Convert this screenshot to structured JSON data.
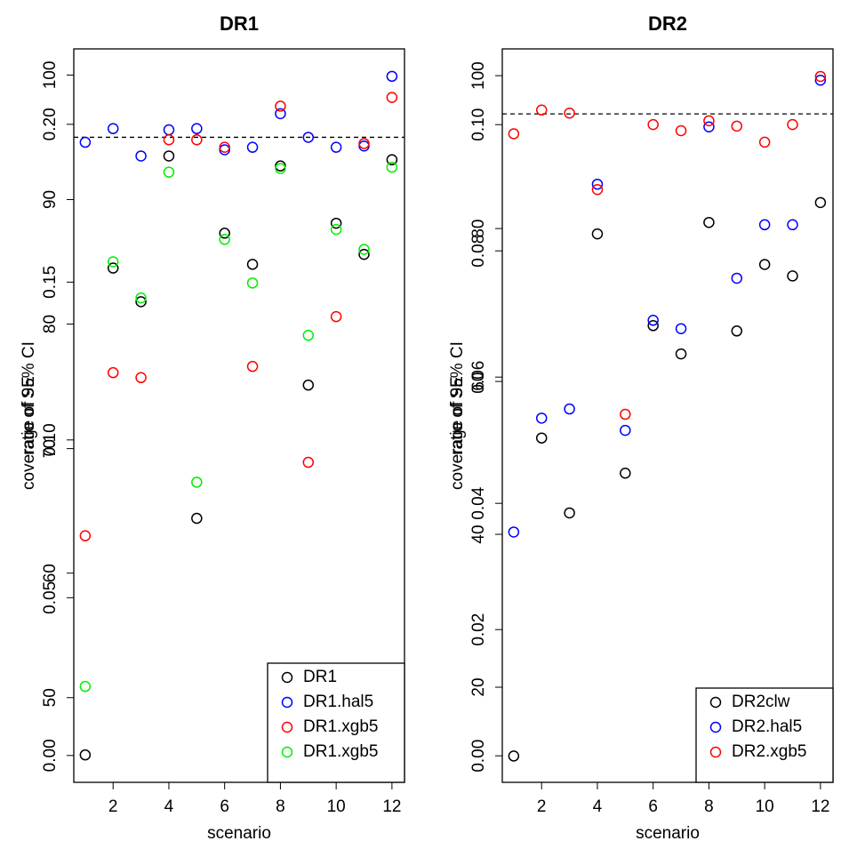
{
  "chart_data": [
    {
      "type": "scatter",
      "title": "DR1",
      "xlabel": "scenario",
      "ylabel": "coverage of 95% CI",
      "y2label": "ratio of SE",
      "x": [
        1,
        2,
        3,
        4,
        5,
        6,
        7,
        8,
        9,
        10,
        11,
        12
      ],
      "xlim": [
        0.59,
        12.45
      ],
      "xticks": [
        2,
        4,
        6,
        8,
        10,
        12
      ],
      "ylim": [
        43.2,
        102.1
      ],
      "yticks": [
        50,
        60,
        70,
        80,
        90,
        100
      ],
      "y2lim": [
        -0.0085,
        0.2239
      ],
      "y2ticks": [
        {
          "value": 0,
          "label": "0.00"
        },
        {
          "value": 0.05,
          "label": "0.05"
        },
        {
          "value": 0.1,
          "label": "0.10"
        },
        {
          "value": 0.15,
          "label": "0.15"
        },
        {
          "value": 0.2,
          "label": "0.20"
        }
      ],
      "hline": 95,
      "legend": "bottomright",
      "series": [
        {
          "name": "DR1",
          "color": "#000000",
          "values": [
            45.4,
            84.5,
            81.8,
            93.5,
            64.4,
            87.3,
            84.8,
            92.7,
            75.1,
            88.1,
            85.6,
            93.2
          ]
        },
        {
          "name": "DR1.hal5",
          "color": "#0000ff",
          "values": [
            94.6,
            95.7,
            93.5,
            95.6,
            95.7,
            94.0,
            94.2,
            96.9,
            95.0,
            94.2,
            94.3,
            99.9
          ]
        },
        {
          "name": "DR1.xgb5",
          "color": "#ff0000",
          "values": [
            63.0,
            76.1,
            75.7,
            94.8,
            94.8,
            94.2,
            76.6,
            97.5,
            68.9,
            80.6,
            94.5,
            98.2
          ]
        },
        {
          "name": "DR1.xgb5",
          "color": "#00ee00",
          "values": [
            50.9,
            85.0,
            82.1,
            92.2,
            67.3,
            86.8,
            83.3,
            92.5,
            79.1,
            87.6,
            86.0,
            92.6
          ]
        }
      ]
    },
    {
      "type": "scatter",
      "title": "DR2",
      "xlabel": "scenario",
      "ylabel": "coverage of 95% CI",
      "y2label": "ratio of SE",
      "x": [
        1,
        2,
        3,
        4,
        5,
        6,
        7,
        8,
        9,
        10,
        11,
        12
      ],
      "xlim": [
        0.59,
        12.45
      ],
      "xticks": [
        2,
        4,
        6,
        8,
        10,
        12
      ],
      "ylim": [
        7.56,
        103.5
      ],
      "yticks": [
        20,
        40,
        60,
        80,
        100
      ],
      "y2lim": [
        -0.0042,
        0.112
      ],
      "y2ticks": [
        {
          "value": 0,
          "label": "0.00"
        },
        {
          "value": 0.02,
          "label": "0.02"
        },
        {
          "value": 0.04,
          "label": "0.04"
        },
        {
          "value": 0.06,
          "label": "0.06"
        },
        {
          "value": 0.08,
          "label": "0.08"
        },
        {
          "value": 0.1,
          "label": "0.10"
        }
      ],
      "hline": 95,
      "legend": "bottomright",
      "series": [
        {
          "name": "DR2clw",
          "color": "#000000",
          "values": [
            11.0,
            52.6,
            42.8,
            79.3,
            48.0,
            67.3,
            63.6,
            80.8,
            66.6,
            75.3,
            73.8,
            83.4
          ]
        },
        {
          "name": "DR2.hal5",
          "color": "#0000ff",
          "values": [
            40.3,
            55.2,
            56.4,
            85.8,
            53.6,
            68.0,
            66.9,
            93.3,
            73.5,
            80.5,
            80.5,
            99.4
          ]
        },
        {
          "name": "DR2.xgb5",
          "color": "#ff0000",
          "values": [
            92.4,
            95.5,
            95.1,
            85.1,
            55.7,
            93.6,
            92.8,
            94.1,
            93.4,
            91.3,
            93.6,
            99.9
          ]
        }
      ]
    }
  ]
}
